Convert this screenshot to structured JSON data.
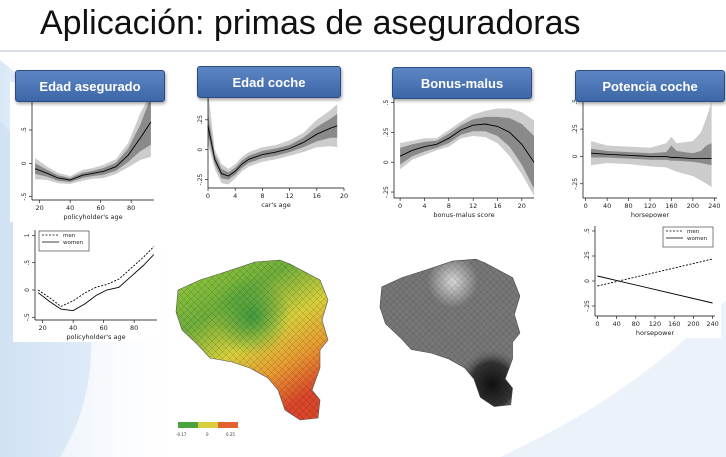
{
  "slide": {
    "title": "Aplicación: primas de aseguradoras",
    "headers": [
      "Edad asegurado",
      "Edad coche",
      "Bonus-malus",
      "Potencia coche"
    ]
  },
  "colors": {
    "header": "#4a74b8",
    "band_outer": "#cccccc",
    "band_inner": "#8a8a8a",
    "line": "#000000"
  },
  "chart_data": [
    {
      "type": "line",
      "xlabel": "policyholder's age",
      "ylabel": "",
      "xticks": [
        20,
        40,
        60,
        80
      ],
      "yticks": [
        "-.5",
        "0",
        ".5",
        "1"
      ],
      "xlim": [
        15,
        95
      ],
      "ylim": [
        -0.55,
        1.1
      ],
      "x": [
        17,
        25,
        32,
        40,
        48,
        55,
        62,
        70,
        78,
        86,
        93
      ],
      "series": [
        {
          "values": [
            -0.08,
            -0.15,
            -0.22,
            -0.25,
            -0.18,
            -0.15,
            -0.12,
            -0.05,
            0.12,
            0.38,
            0.62
          ],
          "lower": [
            -0.16,
            -0.2,
            -0.26,
            -0.28,
            -0.22,
            -0.19,
            -0.17,
            -0.11,
            0.02,
            0.18,
            0.28
          ],
          "upper": [
            0.0,
            -0.1,
            -0.18,
            -0.22,
            -0.14,
            -0.11,
            -0.07,
            0.01,
            0.22,
            0.58,
            1.0
          ],
          "outer_lower": [
            -0.24,
            -0.25,
            -0.3,
            -0.31,
            -0.26,
            -0.23,
            -0.22,
            -0.16,
            -0.06,
            0.05,
            0.1
          ],
          "outer_upper": [
            0.08,
            -0.05,
            -0.14,
            -0.19,
            -0.1,
            -0.07,
            -0.02,
            0.06,
            0.3,
            0.75,
            1.05
          ]
        }
      ]
    },
    {
      "type": "line",
      "xlabel": "car's age",
      "ylabel": "",
      "xticks": [
        0,
        4,
        8,
        12,
        16,
        20
      ],
      "yticks": [
        "-.25",
        "0",
        ".25",
        ".5"
      ],
      "xlim": [
        0,
        20
      ],
      "ylim": [
        -0.32,
        0.6
      ],
      "x": [
        0,
        1,
        2,
        3,
        4,
        5,
        6,
        8,
        10,
        12,
        14,
        16,
        18,
        19
      ],
      "series": [
        {
          "values": [
            0.2,
            -0.08,
            -0.2,
            -0.22,
            -0.18,
            -0.12,
            -0.08,
            -0.04,
            -0.02,
            0.01,
            0.06,
            0.13,
            0.18,
            0.2
          ],
          "lower": [
            0.12,
            -0.12,
            -0.24,
            -0.25,
            -0.21,
            -0.15,
            -0.11,
            -0.07,
            -0.05,
            -0.02,
            0.02,
            0.07,
            0.1,
            0.1
          ],
          "upper": [
            0.3,
            -0.04,
            -0.16,
            -0.19,
            -0.15,
            -0.09,
            -0.05,
            -0.01,
            0.01,
            0.04,
            0.1,
            0.19,
            0.26,
            0.3
          ],
          "outer_lower": [
            0.05,
            -0.16,
            -0.28,
            -0.29,
            -0.24,
            -0.18,
            -0.14,
            -0.1,
            -0.08,
            -0.05,
            -0.02,
            0.02,
            0.03,
            0.02
          ],
          "outer_upper": [
            0.5,
            0.0,
            -0.12,
            -0.16,
            -0.12,
            -0.06,
            -0.02,
            0.02,
            0.04,
            0.08,
            0.14,
            0.25,
            0.33,
            0.38
          ]
        }
      ]
    },
    {
      "type": "line",
      "xlabel": "bonus-malus score",
      "ylabel": "",
      "xticks": [
        0,
        4,
        8,
        12,
        16,
        20
      ],
      "yticks": [
        "-.25",
        "0",
        ".25",
        ".5"
      ],
      "xlim": [
        -1,
        22
      ],
      "ylim": [
        -0.3,
        0.58
      ],
      "x": [
        0,
        2,
        4,
        6,
        8,
        10,
        12,
        14,
        16,
        18,
        20,
        22
      ],
      "series": [
        {
          "values": [
            0.05,
            0.1,
            0.13,
            0.15,
            0.2,
            0.27,
            0.31,
            0.32,
            0.3,
            0.25,
            0.15,
            0.0
          ],
          "lower": [
            -0.02,
            0.05,
            0.09,
            0.12,
            0.16,
            0.23,
            0.26,
            0.26,
            0.22,
            0.13,
            -0.02,
            -0.22
          ],
          "upper": [
            0.12,
            0.15,
            0.17,
            0.18,
            0.24,
            0.31,
            0.36,
            0.38,
            0.38,
            0.37,
            0.32,
            0.22
          ],
          "outer_lower": [
            -0.06,
            0.02,
            0.06,
            0.1,
            0.13,
            0.2,
            0.22,
            0.21,
            0.16,
            0.05,
            -0.1,
            -0.28
          ],
          "outer_upper": [
            0.16,
            0.18,
            0.2,
            0.2,
            0.27,
            0.34,
            0.4,
            0.43,
            0.45,
            0.45,
            0.42,
            0.35
          ]
        }
      ]
    },
    {
      "type": "line",
      "xlabel": "horsepower",
      "ylabel": "",
      "xticks": [
        0,
        40,
        80,
        120,
        160,
        200,
        240
      ],
      "yticks": [
        "-.25",
        "0",
        ".25",
        ".5"
      ],
      "xlim": [
        -5,
        245
      ],
      "ylim": [
        -0.38,
        0.58
      ],
      "x": [
        10,
        40,
        80,
        120,
        150,
        160,
        170,
        200,
        215,
        225,
        235
      ],
      "series": [
        {
          "values": [
            0.03,
            0.02,
            0.01,
            0.0,
            0.0,
            -0.01,
            -0.01,
            -0.02,
            -0.02,
            -0.02,
            -0.02
          ],
          "lower": [
            -0.01,
            -0.01,
            -0.02,
            -0.03,
            -0.03,
            -0.04,
            -0.04,
            -0.05,
            -0.06,
            -0.07,
            -0.08
          ],
          "upper": [
            0.07,
            0.05,
            0.04,
            0.03,
            0.04,
            0.1,
            0.05,
            0.03,
            0.05,
            0.1,
            0.12
          ],
          "outer_lower": [
            -0.08,
            -0.06,
            -0.07,
            -0.09,
            -0.1,
            -0.12,
            -0.14,
            -0.18,
            -0.22,
            -0.25,
            -0.28
          ],
          "outer_upper": [
            0.14,
            0.1,
            0.09,
            0.08,
            0.12,
            0.18,
            0.12,
            0.14,
            0.22,
            0.35,
            0.5
          ]
        }
      ]
    },
    {
      "type": "line",
      "xlabel": "policyholder's age",
      "ylabel": "",
      "xticks": [
        20,
        40,
        60,
        80
      ],
      "yticks": [
        "-.5",
        "0",
        ".5",
        "1"
      ],
      "xlim": [
        15,
        95
      ],
      "ylim": [
        -0.55,
        1.1
      ],
      "legend": "top-left",
      "x": [
        17,
        25,
        32,
        40,
        48,
        55,
        62,
        70,
        78,
        86,
        93
      ],
      "series": [
        {
          "name": "men",
          "style": "dashed",
          "values": [
            0.0,
            -0.15,
            -0.3,
            -0.2,
            -0.05,
            0.05,
            0.1,
            0.2,
            0.4,
            0.6,
            0.8
          ]
        },
        {
          "name": "women",
          "style": "solid",
          "values": [
            -0.05,
            -0.22,
            -0.35,
            -0.38,
            -0.25,
            -0.1,
            0.0,
            0.05,
            0.25,
            0.45,
            0.65
          ]
        }
      ]
    },
    {
      "type": "line",
      "xlabel": "horsepower",
      "ylabel": "",
      "xticks": [
        0,
        40,
        80,
        120,
        160,
        200,
        240
      ],
      "yticks": [
        "-.25",
        "0",
        ".25",
        ".5"
      ],
      "xlim": [
        -5,
        245
      ],
      "ylim": [
        -0.35,
        0.55
      ],
      "legend": "top-right",
      "x": [
        0,
        240
      ],
      "series": [
        {
          "name": "men",
          "style": "dashed",
          "values": [
            -0.05,
            0.22
          ]
        },
        {
          "name": "women",
          "style": "solid",
          "values": [
            0.05,
            -0.22
          ]
        }
      ]
    }
  ],
  "maps": {
    "legend_ticks": [
      "-0.17",
      "0",
      "0.25"
    ]
  }
}
